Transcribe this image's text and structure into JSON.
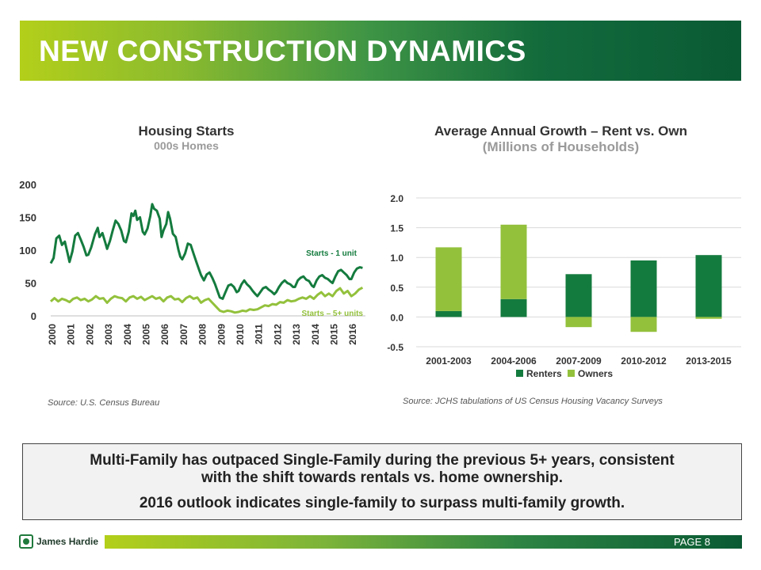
{
  "header": {
    "title": "NEW CONSTRUCTION DYNAMICS"
  },
  "colors": {
    "dark_green": "#147b3e",
    "light_green": "#93c13c",
    "grid": "#d9d9d9",
    "text": "#333333"
  },
  "left_chart": {
    "title": "Housing Starts",
    "subtitle": "000s Homes",
    "source": "Source: U.S. Census Bureau"
  },
  "right_chart": {
    "title": "Average Annual Growth – Rent vs. Own",
    "subtitle": "(Millions of Households)",
    "source": "Source: JCHS tabulations of US Census Housing Vacancy Surveys"
  },
  "callout": {
    "line1": "Multi-Family has outpaced Single-Family during the previous 5+ years, consistent",
    "line2": "with the shift towards rentals vs. home ownership.",
    "line3": "2016 outlook indicates single-family to surpass multi-family growth."
  },
  "footer": {
    "brand": "James Hardie",
    "page_label": "PAGE  8",
    "logo_icon": "james-hardie-logo-icon"
  },
  "chart_data": [
    {
      "type": "line",
      "title": "Housing Starts",
      "subtitle": "000s Homes",
      "xlabel": "",
      "ylabel": "",
      "ylim": [
        0,
        200
      ],
      "yticks": [
        0,
        50,
        100,
        150,
        200
      ],
      "x_tick_labels": [
        "2000",
        "2001",
        "2002",
        "2003",
        "2004",
        "2005",
        "2006",
        "2007",
        "2008",
        "2009",
        "2010",
        "2011",
        "2012",
        "2013",
        "2014",
        "2015",
        "2016"
      ],
      "series": [
        {
          "name": "Starts - 1 unit",
          "color": "#147b3e",
          "points": [
            [
              2000.0,
              80
            ],
            [
              2000.15,
              88
            ],
            [
              2000.3,
              118
            ],
            [
              2000.45,
              122
            ],
            [
              2000.6,
              108
            ],
            [
              2000.75,
              113
            ],
            [
              2000.9,
              95
            ],
            [
              2001.0,
              82
            ],
            [
              2001.15,
              98
            ],
            [
              2001.3,
              122
            ],
            [
              2001.45,
              126
            ],
            [
              2001.6,
              116
            ],
            [
              2001.75,
              105
            ],
            [
              2001.9,
              92
            ],
            [
              2002.0,
              93
            ],
            [
              2002.15,
              104
            ],
            [
              2002.35,
              124
            ],
            [
              2002.5,
              134
            ],
            [
              2002.6,
              120
            ],
            [
              2002.75,
              126
            ],
            [
              2002.9,
              112
            ],
            [
              2003.0,
              102
            ],
            [
              2003.15,
              114
            ],
            [
              2003.3,
              130
            ],
            [
              2003.45,
              145
            ],
            [
              2003.6,
              140
            ],
            [
              2003.75,
              130
            ],
            [
              2003.9,
              114
            ],
            [
              2004.0,
              112
            ],
            [
              2004.15,
              128
            ],
            [
              2004.3,
              156
            ],
            [
              2004.4,
              152
            ],
            [
              2004.5,
              160
            ],
            [
              2004.6,
              146
            ],
            [
              2004.75,
              150
            ],
            [
              2004.9,
              128
            ],
            [
              2005.0,
              124
            ],
            [
              2005.15,
              133
            ],
            [
              2005.3,
              152
            ],
            [
              2005.4,
              170
            ],
            [
              2005.5,
              163
            ],
            [
              2005.65,
              160
            ],
            [
              2005.8,
              148
            ],
            [
              2005.9,
              120
            ],
            [
              2006.0,
              130
            ],
            [
              2006.15,
              140
            ],
            [
              2006.25,
              158
            ],
            [
              2006.35,
              148
            ],
            [
              2006.5,
              125
            ],
            [
              2006.65,
              120
            ],
            [
              2006.8,
              100
            ],
            [
              2006.9,
              90
            ],
            [
              2007.0,
              86
            ],
            [
              2007.15,
              95
            ],
            [
              2007.3,
              110
            ],
            [
              2007.45,
              108
            ],
            [
              2007.6,
              95
            ],
            [
              2007.75,
              82
            ],
            [
              2007.9,
              70
            ],
            [
              2008.0,
              62
            ],
            [
              2008.15,
              54
            ],
            [
              2008.3,
              63
            ],
            [
              2008.45,
              66
            ],
            [
              2008.6,
              58
            ],
            [
              2008.75,
              48
            ],
            [
              2008.9,
              36
            ],
            [
              2009.0,
              28
            ],
            [
              2009.15,
              26
            ],
            [
              2009.3,
              36
            ],
            [
              2009.45,
              46
            ],
            [
              2009.6,
              48
            ],
            [
              2009.75,
              44
            ],
            [
              2009.9,
              36
            ],
            [
              2010.0,
              38
            ],
            [
              2010.15,
              48
            ],
            [
              2010.3,
              54
            ],
            [
              2010.45,
              48
            ],
            [
              2010.6,
              44
            ],
            [
              2010.75,
              38
            ],
            [
              2010.9,
              33
            ],
            [
              2011.0,
              30
            ],
            [
              2011.15,
              36
            ],
            [
              2011.3,
              42
            ],
            [
              2011.45,
              44
            ],
            [
              2011.6,
              40
            ],
            [
              2011.75,
              37
            ],
            [
              2011.9,
              33
            ],
            [
              2012.0,
              36
            ],
            [
              2012.15,
              44
            ],
            [
              2012.3,
              50
            ],
            [
              2012.45,
              54
            ],
            [
              2012.6,
              50
            ],
            [
              2012.75,
              48
            ],
            [
              2012.9,
              44
            ],
            [
              2013.0,
              44
            ],
            [
              2013.15,
              54
            ],
            [
              2013.3,
              58
            ],
            [
              2013.45,
              60
            ],
            [
              2013.6,
              55
            ],
            [
              2013.75,
              53
            ],
            [
              2013.9,
              46
            ],
            [
              2014.0,
              44
            ],
            [
              2014.15,
              54
            ],
            [
              2014.3,
              60
            ],
            [
              2014.45,
              62
            ],
            [
              2014.6,
              58
            ],
            [
              2014.75,
              56
            ],
            [
              2014.9,
              52
            ],
            [
              2015.0,
              50
            ],
            [
              2015.15,
              60
            ],
            [
              2015.3,
              68
            ],
            [
              2015.45,
              70
            ],
            [
              2015.6,
              66
            ],
            [
              2015.75,
              62
            ],
            [
              2015.9,
              56
            ],
            [
              2016.0,
              56
            ],
            [
              2016.15,
              66
            ],
            [
              2016.3,
              72
            ],
            [
              2016.45,
              74
            ],
            [
              2016.6,
              73
            ]
          ]
        },
        {
          "name": "Starts – 5+ units",
          "color": "#93c13c",
          "points": [
            [
              2000.0,
              22
            ],
            [
              2000.2,
              27
            ],
            [
              2000.4,
              22
            ],
            [
              2000.6,
              26
            ],
            [
              2000.8,
              24
            ],
            [
              2001.0,
              21
            ],
            [
              2001.2,
              26
            ],
            [
              2001.4,
              28
            ],
            [
              2001.6,
              24
            ],
            [
              2001.8,
              26
            ],
            [
              2002.0,
              22
            ],
            [
              2002.2,
              25
            ],
            [
              2002.4,
              30
            ],
            [
              2002.6,
              26
            ],
            [
              2002.8,
              27
            ],
            [
              2003.0,
              20
            ],
            [
              2003.2,
              26
            ],
            [
              2003.4,
              30
            ],
            [
              2003.6,
              28
            ],
            [
              2003.8,
              27
            ],
            [
              2004.0,
              22
            ],
            [
              2004.2,
              28
            ],
            [
              2004.4,
              30
            ],
            [
              2004.6,
              26
            ],
            [
              2004.8,
              29
            ],
            [
              2005.0,
              24
            ],
            [
              2005.2,
              27
            ],
            [
              2005.4,
              30
            ],
            [
              2005.6,
              26
            ],
            [
              2005.8,
              28
            ],
            [
              2006.0,
              22
            ],
            [
              2006.2,
              28
            ],
            [
              2006.4,
              30
            ],
            [
              2006.6,
              25
            ],
            [
              2006.8,
              26
            ],
            [
              2007.0,
              21
            ],
            [
              2007.2,
              27
            ],
            [
              2007.4,
              30
            ],
            [
              2007.6,
              26
            ],
            [
              2007.8,
              28
            ],
            [
              2008.0,
              20
            ],
            [
              2008.2,
              24
            ],
            [
              2008.4,
              26
            ],
            [
              2008.6,
              20
            ],
            [
              2008.8,
              14
            ],
            [
              2009.0,
              8
            ],
            [
              2009.2,
              6
            ],
            [
              2009.4,
              8
            ],
            [
              2009.6,
              7
            ],
            [
              2009.8,
              5
            ],
            [
              2010.0,
              6
            ],
            [
              2010.2,
              8
            ],
            [
              2010.4,
              7
            ],
            [
              2010.6,
              10
            ],
            [
              2010.8,
              9
            ],
            [
              2011.0,
              10
            ],
            [
              2011.2,
              13
            ],
            [
              2011.4,
              16
            ],
            [
              2011.6,
              15
            ],
            [
              2011.8,
              18
            ],
            [
              2012.0,
              17
            ],
            [
              2012.2,
              21
            ],
            [
              2012.4,
              20
            ],
            [
              2012.6,
              24
            ],
            [
              2012.8,
              22
            ],
            [
              2013.0,
              23
            ],
            [
              2013.2,
              26
            ],
            [
              2013.4,
              28
            ],
            [
              2013.6,
              26
            ],
            [
              2013.8,
              30
            ],
            [
              2014.0,
              26
            ],
            [
              2014.2,
              32
            ],
            [
              2014.4,
              36
            ],
            [
              2014.6,
              30
            ],
            [
              2014.8,
              34
            ],
            [
              2015.0,
              30
            ],
            [
              2015.2,
              38
            ],
            [
              2015.4,
              42
            ],
            [
              2015.6,
              34
            ],
            [
              2015.8,
              38
            ],
            [
              2016.0,
              30
            ],
            [
              2016.2,
              34
            ],
            [
              2016.4,
              40
            ],
            [
              2016.6,
              43
            ]
          ]
        }
      ],
      "annotations": [
        "Starts - 1 unit",
        "Starts – 5+ units"
      ]
    },
    {
      "type": "bar",
      "stacked": true,
      "title": "Average Annual Growth – Rent vs. Own",
      "subtitle": "(Millions of Households)",
      "categories": [
        "2001-2003",
        "2004-2006",
        "2007-2009",
        "2010-2012",
        "2013-2015"
      ],
      "series": [
        {
          "name": "Renters",
          "color": "#147b3e",
          "values": [
            0.1,
            0.3,
            0.72,
            0.95,
            1.04
          ]
        },
        {
          "name": "Owners",
          "color": "#93c13c",
          "values": [
            1.07,
            1.25,
            -0.17,
            -0.25,
            -0.03
          ]
        }
      ],
      "ylim": [
        -0.5,
        2.0
      ],
      "yticks": [
        "-0.5",
        "0.0",
        "0.5",
        "1.0",
        "1.5",
        "2.0"
      ],
      "legend": "bottom"
    }
  ]
}
